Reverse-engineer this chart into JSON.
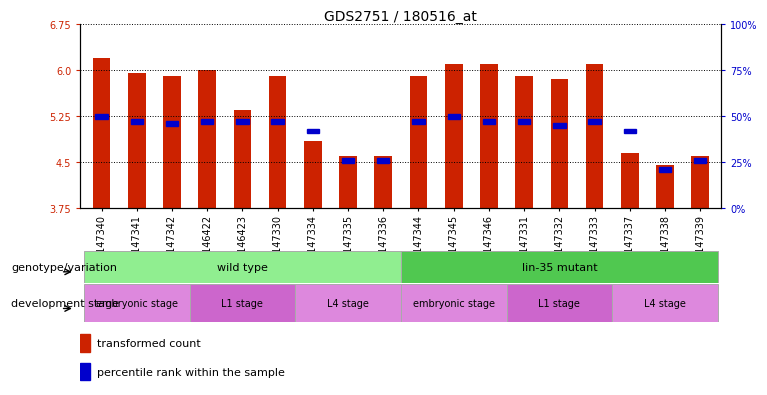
{
  "title": "GDS2751 / 180516_at",
  "samples": [
    "GSM147340",
    "GSM147341",
    "GSM147342",
    "GSM146422",
    "GSM146423",
    "GSM147330",
    "GSM147334",
    "GSM147335",
    "GSM147336",
    "GSM147344",
    "GSM147345",
    "GSM147346",
    "GSM147331",
    "GSM147332",
    "GSM147333",
    "GSM147337",
    "GSM147338",
    "GSM147339"
  ],
  "transformed_count": [
    6.2,
    5.95,
    5.9,
    6.0,
    5.35,
    5.9,
    4.85,
    4.6,
    4.6,
    5.9,
    6.1,
    6.1,
    5.9,
    5.85,
    6.1,
    4.65,
    4.45,
    4.6
  ],
  "percentile_rank": [
    50,
    47,
    46,
    47,
    47,
    47,
    42,
    26,
    26,
    47,
    50,
    47,
    47,
    45,
    47,
    42,
    21,
    26
  ],
  "ymin": 3.75,
  "ymax": 6.75,
  "yticks_left": [
    3.75,
    4.5,
    5.25,
    6.0,
    6.75
  ],
  "yticks_right": [
    0,
    25,
    50,
    75,
    100
  ],
  "bar_color": "#cc2200",
  "blue_color": "#0000cc",
  "bar_width": 0.5,
  "geno_wt_color": "#90ee90",
  "geno_mt_color": "#50c850",
  "dev_color_emb": "#dd88dd",
  "dev_color_l1": "#cc66cc",
  "dev_color_l4": "#dd88dd",
  "label_left_color": "#000000",
  "title_fontsize": 10,
  "tick_fontsize": 7,
  "label_fontsize": 8,
  "annot_fontsize": 8
}
